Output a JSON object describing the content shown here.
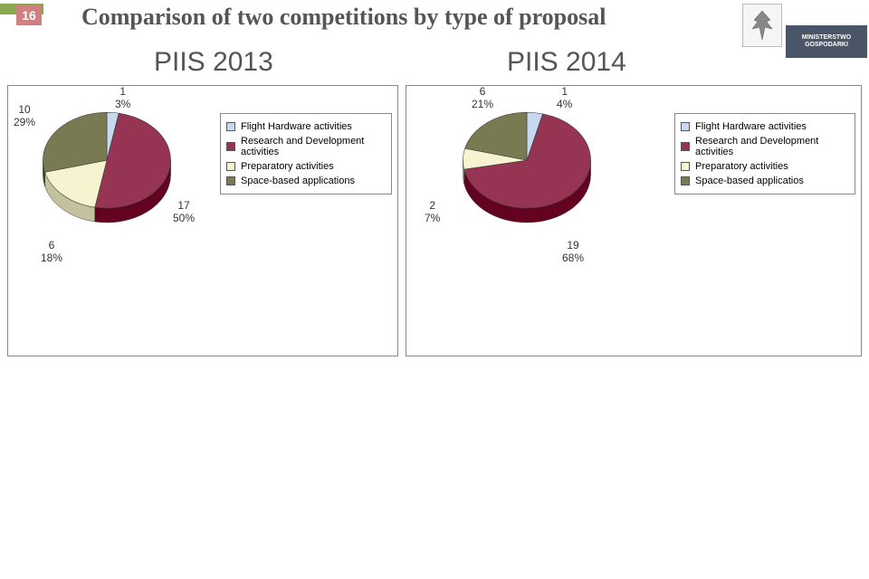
{
  "page_number": "16",
  "title": "Comparison of two competitions by type of proposal",
  "year_left": "PIIS 2013",
  "year_right": "PIIS 2014",
  "logo_text_top": "MINISTERSTWO",
  "logo_text_bot": "GOSPODARKI",
  "legend": {
    "flight": "Flight Hardware activities",
    "rnd": "Research and Development activities",
    "prep": "Preparatory activities",
    "space_l": "Space-based applications",
    "space_r": "Space-based applicatios"
  },
  "colors": {
    "flight": "#c6d9f0",
    "rnd": "#953553",
    "prep": "#f5f3d0",
    "space": "#7a7a52",
    "outline": "#333333",
    "title": "#555555"
  },
  "chart2013": {
    "type": "pie",
    "slices": [
      {
        "key": "flight",
        "label": "1\n3%",
        "value": 1,
        "pct": 3
      },
      {
        "key": "rnd",
        "label": "17\n50%",
        "value": 17,
        "pct": 50
      },
      {
        "key": "prep",
        "label": "6\n18%",
        "value": 6,
        "pct": 18
      },
      {
        "key": "space",
        "label": "10\n29%",
        "value": 10,
        "pct": 29
      }
    ]
  },
  "chart2014": {
    "type": "pie",
    "slices": [
      {
        "key": "flight",
        "label": "1\n4%",
        "value": 1,
        "pct": 4
      },
      {
        "key": "rnd",
        "label": "19\n68%",
        "value": 19,
        "pct": 68
      },
      {
        "key": "prep",
        "label": "2\n7%",
        "value": 2,
        "pct": 7
      },
      {
        "key": "space",
        "label": "6\n21%",
        "value": 6,
        "pct": 21
      }
    ]
  }
}
